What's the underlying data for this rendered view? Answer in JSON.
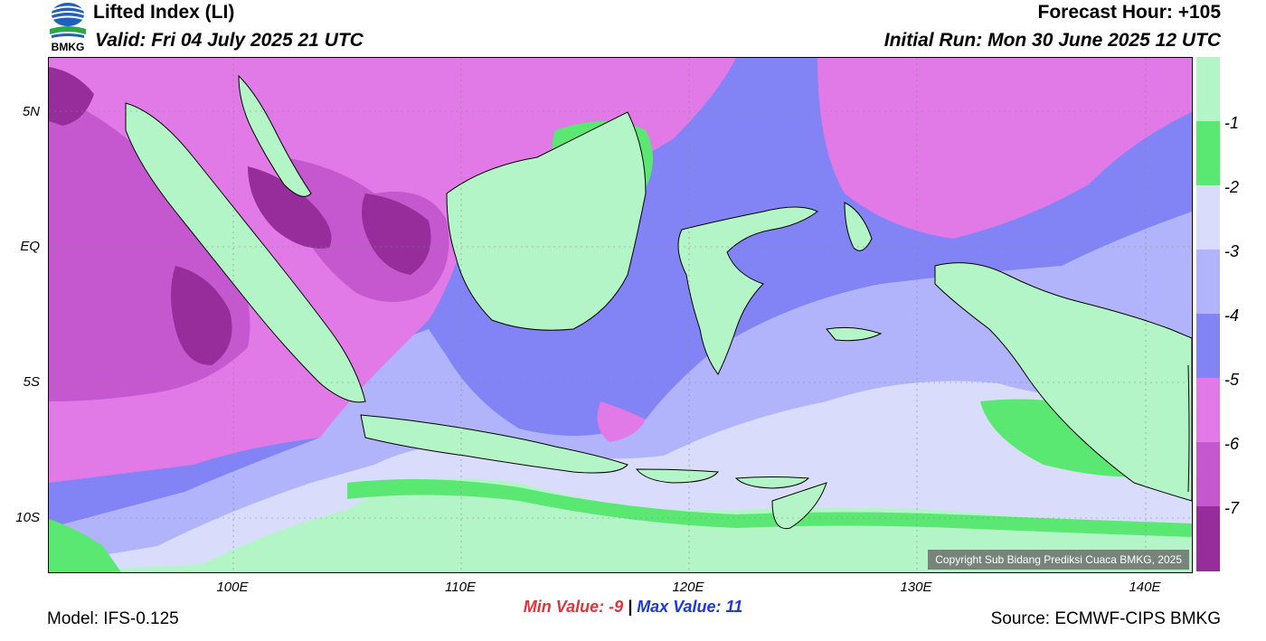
{
  "header": {
    "title": "Lifted Index (LI)",
    "valid": "Valid: Fri 04 July 2025 21 UTC",
    "forecast_hour": "Forecast Hour: +105",
    "initial_run": "Initial Run: Mon 30 June 2025 12 UTC",
    "logo_text": "BMKG"
  },
  "map": {
    "y_labels": [
      "5N",
      "EQ",
      "5S",
      "10S"
    ],
    "x_labels": [
      "100E",
      "110E",
      "120E",
      "130E",
      "140E"
    ],
    "copyright": "Copyright Sub Bidang Prediksi Cuaca BMKG, 2025"
  },
  "legend": {
    "labels": [
      "-1",
      "-2",
      "-3",
      "-4",
      "-5",
      "-6",
      "-7"
    ],
    "colors": [
      "#b4f5c8",
      "#5ae873",
      "#d9dcfb",
      "#b1b3fb",
      "#8283f5",
      "#e17ae6",
      "#c557cf",
      "#962d9a"
    ]
  },
  "stats": {
    "min": "Min Value:  -9",
    "sep": "|",
    "max": "Max Value:  11"
  },
  "footer": {
    "model": "Model: IFS-0.125",
    "source": "Source: ECMWF-CIPS BMKG"
  }
}
